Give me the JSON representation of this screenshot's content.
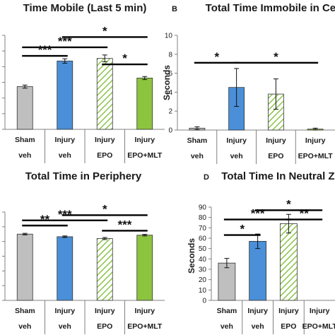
{
  "styles": {
    "sham": "#bfbfbf",
    "injury": "#4a8fd8",
    "epo_stroke": "#8bc34a",
    "mlt": "#8cc43f",
    "border": "#333333"
  },
  "chart_data": [
    {
      "panel": "",
      "type": "bar",
      "title": "Time Mobile (Last 5 min)",
      "ylabel": "",
      "ylim": [
        0,
        110
      ],
      "yticks": [],
      "categories": [
        {
          "top": "Sham",
          "bottom": "veh"
        },
        {
          "top": "Injury",
          "bottom": "veh"
        },
        {
          "top": "Injury",
          "bottom": "EPO"
        },
        {
          "top": "Injury",
          "bottom": "EPO+MLT"
        }
      ],
      "values": [
        50,
        80,
        83,
        60
      ],
      "errors": [
        1.8,
        2.6,
        4,
        1.8
      ],
      "significance": [
        {
          "label": "*",
          "from": 1,
          "to": 3,
          "level": 108
        },
        {
          "label": "***",
          "from": 0,
          "to": 2,
          "level": 96
        },
        {
          "label": "***",
          "from": 0,
          "to": 1,
          "level": 86
        },
        {
          "label": "*",
          "from": 2,
          "to": 3,
          "level": 76
        }
      ]
    },
    {
      "panel": "B",
      "type": "bar",
      "title": "Total Time Immobile in Cent",
      "ylabel": "Seconds",
      "ylim": [
        0,
        10
      ],
      "yticks": [
        "0",
        "2",
        "4",
        "6",
        "8",
        "10"
      ],
      "categories": [
        {
          "top": "Sham",
          "bottom": "veh"
        },
        {
          "top": "Injury",
          "bottom": "veh"
        },
        {
          "top": "Injury",
          "bottom": "EPO"
        },
        {
          "top": "Injury",
          "bottom": "EPO+MLT"
        }
      ],
      "values": [
        0.2,
        4.5,
        3.8,
        0.1
      ],
      "errors": [
        0.15,
        2,
        1.6,
        0.1
      ],
      "significance": [
        {
          "label": "*",
          "from": 0,
          "to": 1,
          "level": 7.1
        },
        {
          "label": "*",
          "from": 1,
          "to": 3,
          "level": 7.1
        }
      ]
    },
    {
      "panel": "",
      "type": "bar",
      "title": "Total Time in Periphery",
      "ylabel": "",
      "ylim": [
        0,
        340
      ],
      "yticks": [],
      "categories": [
        {
          "top": "Sham",
          "bottom": "veh"
        },
        {
          "top": "Injury",
          "bottom": "veh"
        },
        {
          "top": "Injury",
          "bottom": "EPO"
        },
        {
          "top": "Injury",
          "bottom": "EPO+MLT"
        }
      ],
      "values": [
        255,
        245,
        238,
        251
      ],
      "errors": [
        3,
        3,
        4,
        3
      ],
      "significance": [
        {
          "label": "*",
          "from": 1,
          "to": 3,
          "level": 328
        },
        {
          "label": "***",
          "from": 0,
          "to": 2,
          "level": 308
        },
        {
          "label": "**",
          "from": 0,
          "to": 1,
          "level": 288
        },
        {
          "label": "***",
          "from": 2,
          "to": 3,
          "level": 268
        }
      ]
    },
    {
      "panel": "D",
      "type": "bar",
      "title": "Total Time In Neutral Zo",
      "ylabel": "Seconds",
      "ylim": [
        0,
        90
      ],
      "yticks": [
        "0",
        "10",
        "20",
        "30",
        "40",
        "50",
        "60",
        "70",
        "80",
        "90"
      ],
      "categories": [
        {
          "top": "Sham",
          "bottom": "veh"
        },
        {
          "top": "Injury",
          "bottom": "veh"
        },
        {
          "top": "Injury",
          "bottom": "EPO"
        },
        {
          "top": "Injury",
          "bottom": "EPO+MLT"
        }
      ],
      "values": [
        36,
        57,
        74,
        null
      ],
      "errors": [
        4.5,
        7,
        9,
        null
      ],
      "significance": [
        {
          "label": "*",
          "from": 1,
          "to": 3,
          "level": 87
        },
        {
          "label": "***",
          "from": 0,
          "to": 2,
          "level": 78
        },
        {
          "label": "*",
          "from": 0,
          "to": 1,
          "level": 63
        },
        {
          "label": "**",
          "from": 2,
          "to": 3,
          "level": 78
        }
      ]
    }
  ]
}
